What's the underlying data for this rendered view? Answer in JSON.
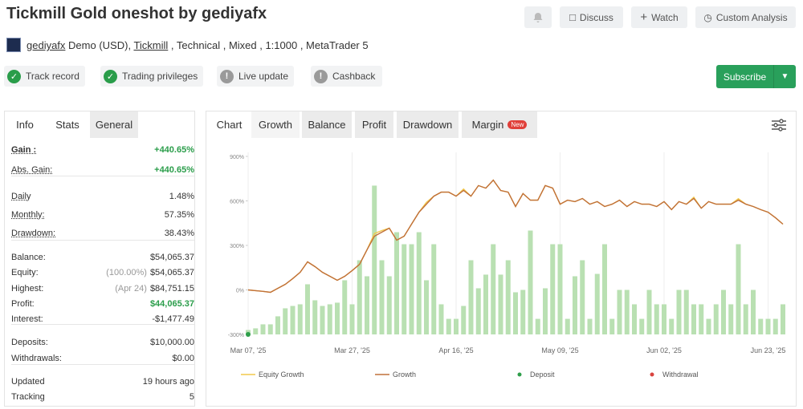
{
  "header": {
    "title": "Tickmill Gold oneshot by gediyafx",
    "buttons": [
      "Discuss",
      "Watch",
      "Custom Analysis"
    ],
    "account": {
      "user": "gediyafx",
      "type": "Demo (USD),",
      "broker": "Tickmill",
      "details": ", Technical , Mixed , 1:1000 , MetaTrader 5"
    },
    "badges": [
      "Track record",
      "Trading privileges",
      "Live update",
      "Cashback"
    ],
    "subscribe": "Subscribe"
  },
  "stats": {
    "tabs": [
      "Info",
      "Stats",
      "General"
    ],
    "groups": [
      [
        {
          "label": "Gain :",
          "value": "+440.65%",
          "color": "#2a9d4a"
        },
        {
          "label": "Abs. Gain:",
          "value": "+440.65%",
          "color": "#2a9d4a"
        }
      ],
      [
        {
          "label": "Daily",
          "value": "1.48%"
        },
        {
          "label": "Monthly:",
          "value": "57.35%"
        },
        {
          "label": "Drawdown:",
          "value": "38.43%"
        }
      ],
      [
        {
          "label": "Balance:",
          "value": "$54,065.37"
        },
        {
          "label": "Equity:",
          "note": "(100.00%)",
          "value": "$54,065.37"
        },
        {
          "label": "Highest:",
          "note": "(Apr 24)",
          "value": "$84,751.15"
        },
        {
          "label": "Profit:",
          "value": "$44,065.37",
          "color": "#2a9d4a"
        },
        {
          "label": "Interest:",
          "value": "-$1,477.49"
        }
      ],
      [
        {
          "label": "Deposits:",
          "value": "$10,000.00"
        },
        {
          "label": "Withdrawals:",
          "value": "$0.00"
        }
      ],
      [
        {
          "label": "Updated",
          "value": "19 hours ago"
        },
        {
          "label": "Tracking",
          "value": "5"
        }
      ]
    ]
  },
  "chart_tabs": {
    "tabs": [
      "Chart",
      "Growth",
      "Balance",
      "Profit",
      "Drawdown",
      "Margin"
    ],
    "badge": "New"
  },
  "chart_data": {
    "type": "line",
    "categories": [
      "Mar 07, '25",
      null,
      null,
      null,
      null,
      null,
      null,
      null,
      null,
      null,
      null,
      null,
      null,
      null,
      "Mar 27, '25",
      null,
      null,
      null,
      null,
      null,
      null,
      null,
      null,
      null,
      null,
      null,
      null,
      null,
      "Apr 16, '25",
      null,
      null,
      null,
      null,
      null,
      null,
      null,
      null,
      null,
      null,
      null,
      null,
      null,
      "May 09, '25",
      null,
      null,
      null,
      null,
      null,
      null,
      null,
      null,
      null,
      null,
      null,
      null,
      null,
      "Jun 02, '25",
      null,
      null,
      null,
      null,
      null,
      null,
      null,
      null,
      null,
      null,
      null,
      null,
      null,
      "Jun 23, '25",
      null,
      null
    ],
    "ylim": [
      -300,
      900
    ],
    "yticks": [
      {
        "value": 900,
        "label": "900%"
      },
      {
        "value": 600,
        "label": "600%"
      },
      {
        "value": 300,
        "label": "300%"
      },
      {
        "value": 0,
        "label": "0%"
      },
      {
        "value": -300,
        "label": "-300%"
      }
    ],
    "grid": true,
    "series": [
      {
        "type": "bar",
        "color": "#b9e0b2",
        "values": [
          -270,
          -259,
          -232,
          -232,
          -178,
          -124,
          -108,
          -97,
          38,
          -70,
          -108,
          -97,
          -86,
          65,
          -97,
          200,
          92,
          703,
          200,
          92,
          389,
          308,
          308,
          389,
          65,
          308,
          -97,
          -195,
          -195,
          -108,
          200,
          11,
          103,
          308,
          103,
          200,
          -16,
          0,
          400,
          -195,
          11,
          308,
          308,
          -195,
          92,
          200,
          -195,
          108,
          308,
          -195,
          0,
          0,
          -97,
          -195,
          0,
          -97,
          -97,
          -195,
          0,
          0,
          -97,
          -97,
          -195,
          -97,
          0,
          -97,
          308,
          -97,
          0,
          -195,
          -195,
          -195,
          -97
        ]
      },
      {
        "name": "Equity Growth",
        "type": "line",
        "color": "#f2c94c",
        "values": [
          0,
          -5,
          -10,
          -16,
          11,
          38,
          76,
          119,
          189,
          157,
          119,
          92,
          65,
          92,
          130,
          173,
          270,
          380,
          400,
          416,
          335,
          362,
          443,
          524,
          590,
          632,
          659,
          659,
          632,
          680,
          632,
          703,
          686,
          740,
          670,
          659,
          562,
          649,
          605,
          605,
          703,
          686,
          578,
          605,
          595,
          616,
          578,
          595,
          562,
          578,
          605,
          562,
          595,
          578,
          578,
          562,
          595,
          541,
          595,
          578,
          625,
          551,
          595,
          578,
          578,
          578,
          615,
          578,
          562,
          541,
          524,
          486,
          443
        ]
      },
      {
        "name": "Growth",
        "type": "line",
        "color": "#c0703a",
        "values": [
          0,
          -5,
          -10,
          -16,
          11,
          38,
          76,
          119,
          189,
          157,
          119,
          92,
          65,
          92,
          130,
          173,
          270,
          362,
          389,
          416,
          335,
          362,
          443,
          524,
          578,
          632,
          659,
          659,
          632,
          670,
          632,
          703,
          686,
          740,
          670,
          659,
          562,
          649,
          605,
          605,
          703,
          686,
          578,
          605,
          595,
          616,
          578,
          595,
          562,
          578,
          605,
          562,
          595,
          578,
          578,
          562,
          595,
          541,
          595,
          578,
          616,
          551,
          595,
          578,
          578,
          578,
          605,
          578,
          562,
          541,
          524,
          486,
          443
        ]
      },
      {
        "name": "Deposit",
        "type": "scatter",
        "color": "#2e9e4a",
        "values": [
          -300,
          null,
          null,
          null,
          null,
          null,
          null,
          null,
          null,
          null,
          null,
          null,
          null,
          null,
          null,
          null,
          null,
          null,
          null,
          null,
          null,
          null,
          null,
          null,
          null,
          null,
          null,
          null,
          null,
          null,
          null,
          null,
          null,
          null,
          null,
          null,
          null,
          null,
          null,
          null,
          null,
          null,
          null,
          null,
          null,
          null,
          null,
          null,
          null,
          null,
          null,
          null,
          null,
          null,
          null,
          null,
          null,
          null,
          null,
          null,
          null,
          null,
          null,
          null,
          null,
          null,
          null,
          null,
          null,
          null,
          null,
          null,
          null
        ]
      },
      {
        "name": "Withdrawal",
        "type": "scatter",
        "color": "#d9443f",
        "values": [
          null,
          null,
          null,
          null,
          null,
          null,
          null,
          null,
          null,
          null,
          null,
          null,
          null,
          null,
          null,
          null,
          null,
          null,
          null,
          null,
          null,
          null,
          null,
          null,
          null,
          null,
          null,
          null,
          null,
          null,
          null,
          null,
          null,
          null,
          null,
          null,
          null,
          null,
          null,
          null,
          null,
          null,
          null,
          null,
          null,
          null,
          null,
          null,
          null,
          null,
          null,
          null,
          null,
          null,
          null,
          null,
          null,
          null,
          null,
          null,
          null,
          null,
          null,
          null,
          null,
          null,
          null,
          null,
          null,
          null,
          null,
          null,
          null
        ]
      }
    ]
  }
}
